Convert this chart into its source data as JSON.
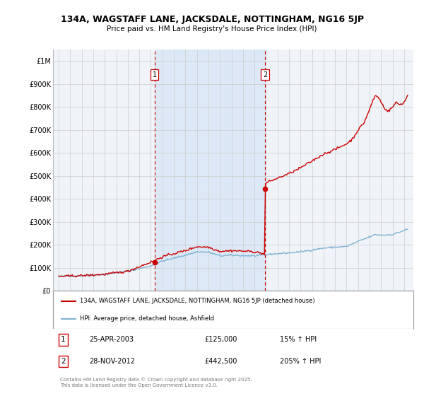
{
  "title": "134A, WAGSTAFF LANE, JACKSDALE, NOTTINGHAM, NG16 5JP",
  "subtitle": "Price paid vs. HM Land Registry's House Price Index (HPI)",
  "hpi_label": "HPI: Average price, detached house, Ashfield",
  "property_label": "134A, WAGSTAFF LANE, JACKSDALE, NOTTINGHAM, NG16 5JP (detached house)",
  "hpi_color": "#7fb3d3",
  "property_color": "#cc0000",
  "marker1_date": 2003.32,
  "marker2_date": 2012.91,
  "marker1_price": 125000,
  "marker2_price": 442500,
  "marker1_label": "1",
  "marker2_label": "2",
  "marker1_info": "25-APR-2003",
  "marker1_amount": "£125,000",
  "marker1_hpi": "15% ↑ HPI",
  "marker2_info": "28-NOV-2012",
  "marker2_amount": "£442,500",
  "marker2_hpi": "205% ↑ HPI",
  "footer": "Contains HM Land Registry data © Crown copyright and database right 2025.\nThis data is licensed under the Open Government Licence v3.0.",
  "ylim": [
    0,
    1050000
  ],
  "yticks": [
    0,
    100000,
    200000,
    300000,
    400000,
    500000,
    600000,
    700000,
    800000,
    900000,
    1000000
  ],
  "ytick_labels": [
    "£0",
    "£100K",
    "£200K",
    "£300K",
    "£400K",
    "£500K",
    "£600K",
    "£700K",
    "£800K",
    "£900K",
    "£1M"
  ],
  "background_color": "#ffffff",
  "grid_color": "#cccccc",
  "plot_bg_color": "#f0f4f8",
  "shade_color": "#dce8f5"
}
